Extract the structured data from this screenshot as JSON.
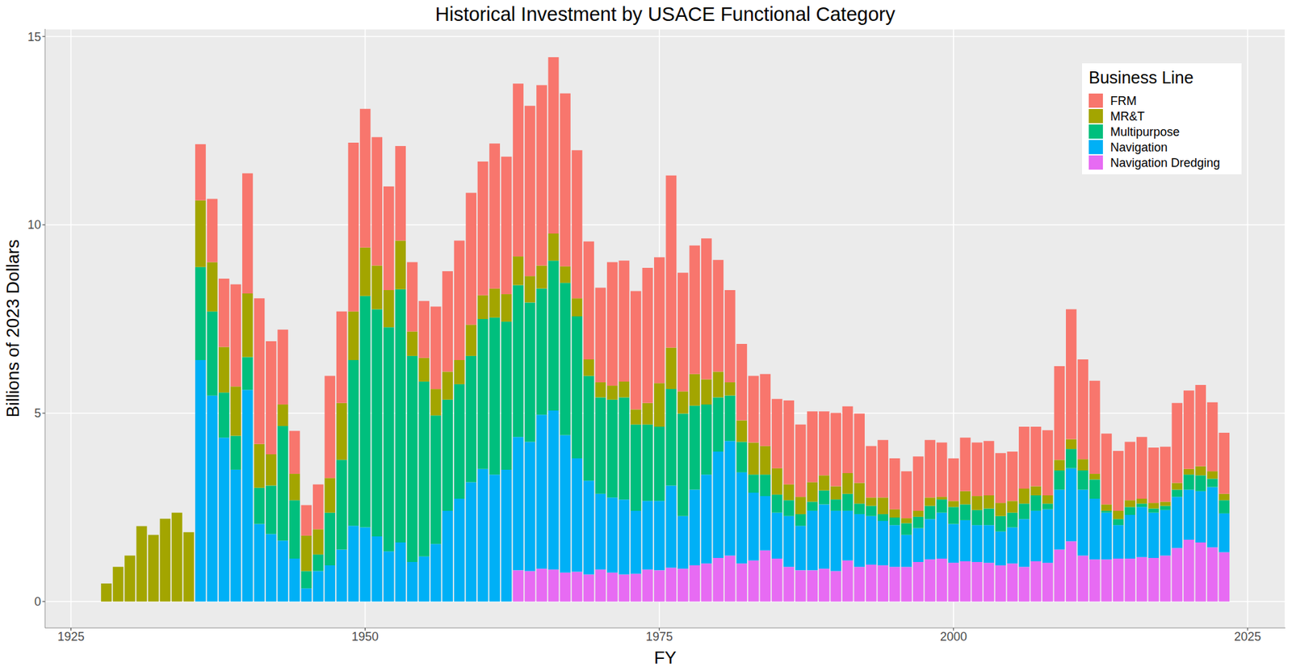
{
  "chart_data": {
    "type": "bar",
    "title": "Historical Investment by USACE Functional Category",
    "x_label": "FY",
    "y_label": "Billions of 2023 Dollars",
    "legend_title": "Business Line",
    "legend": "top-right",
    "stacked": true,
    "grid": true,
    "xlim": [
      1922.8,
      2028.2
    ],
    "xticks": [
      1925,
      1950,
      1975,
      2000,
      2025
    ],
    "ylim": [
      -0.7,
      15.2
    ],
    "yticks": [
      0,
      5,
      10,
      15
    ],
    "x": [
      1928,
      1929,
      1930,
      1931,
      1932,
      1933,
      1934,
      1935,
      1936,
      1937,
      1938,
      1939,
      1940,
      1941,
      1942,
      1943,
      1944,
      1945,
      1946,
      1947,
      1948,
      1949,
      1950,
      1951,
      1952,
      1953,
      1954,
      1955,
      1956,
      1957,
      1958,
      1959,
      1960,
      1961,
      1962,
      1963,
      1964,
      1965,
      1966,
      1967,
      1968,
      1969,
      1970,
      1971,
      1972,
      1973,
      1974,
      1975,
      1976,
      1977,
      1978,
      1979,
      1980,
      1981,
      1982,
      1983,
      1984,
      1985,
      1986,
      1987,
      1988,
      1989,
      1990,
      1991,
      1992,
      1993,
      1994,
      1995,
      1996,
      1997,
      1998,
      1999,
      2000,
      2001,
      2002,
      2003,
      2004,
      2005,
      2006,
      2007,
      2008,
      2009,
      2010,
      2011,
      2012,
      2013,
      2014,
      2015,
      2016,
      2017,
      2018,
      2019,
      2020,
      2021,
      2022,
      2023
    ],
    "series": [
      {
        "name": "FRM",
        "color": "#F8766D",
        "values": [
          null,
          null,
          null,
          null,
          null,
          null,
          null,
          null,
          1.49,
          1.68,
          1.81,
          2.71,
          3.19,
          3.87,
          3.0,
          1.99,
          1.14,
          0.81,
          1.19,
          2.71,
          2.43,
          4.48,
          3.68,
          3.41,
          2.75,
          2.51,
          1.84,
          1.51,
          2.19,
          2.67,
          3.17,
          3.5,
          3.55,
          3.85,
          3.65,
          4.59,
          4.52,
          4.79,
          4.68,
          4.59,
          3.93,
          3.13,
          2.51,
          3.28,
          3.21,
          3.14,
          3.59,
          3.34,
          4.57,
          3.15,
          3.41,
          3.74,
          2.97,
          2.45,
          2.03,
          1.77,
          1.91,
          1.84,
          2.23,
          1.92,
          1.88,
          1.7,
          1.95,
          1.77,
          1.84,
          1.37,
          1.53,
          1.35,
          1.25,
          1.44,
          1.53,
          1.44,
          1.13,
          1.42,
          1.42,
          1.44,
          1.32,
          1.31,
          1.64,
          1.58,
          1.73,
          2.49,
          3.45,
          2.65,
          2.47,
          1.88,
          1.59,
          1.55,
          1.64,
          1.47,
          1.46,
          2.12,
          2.08,
          2.16,
          1.83,
          1.62
        ]
      },
      {
        "name": "MR&T",
        "color": "#A3A500",
        "values": [
          0.48,
          0.92,
          1.22,
          2.0,
          1.77,
          2.2,
          2.36,
          1.84,
          1.77,
          1.31,
          1.21,
          1.31,
          1.69,
          1.16,
          0.83,
          0.57,
          0.7,
          0.94,
          0.67,
          0.92,
          1.51,
          1.29,
          1.29,
          1.16,
          0.99,
          1.29,
          0.65,
          0.63,
          0.7,
          0.74,
          0.64,
          0.83,
          0.63,
          0.77,
          0.73,
          0.76,
          0.7,
          0.61,
          0.72,
          0.44,
          0.48,
          0.44,
          0.4,
          0.37,
          0.42,
          0.4,
          0.57,
          1.16,
          1.1,
          0.59,
          0.84,
          0.67,
          0.68,
          0.35,
          0.57,
          0.85,
          0.76,
          0.7,
          0.42,
          0.46,
          0.52,
          0.4,
          0.35,
          0.55,
          0.55,
          0.22,
          0.44,
          0.22,
          0.13,
          0.16,
          0.22,
          0.07,
          0.16,
          0.35,
          0.37,
          0.35,
          0.35,
          0.31,
          0.4,
          0.24,
          0.22,
          0.28,
          0.26,
          0.3,
          0.15,
          0.17,
          0.22,
          0.18,
          0.13,
          0.15,
          0.11,
          0.18,
          0.15,
          0.24,
          0.2,
          0.17
        ]
      },
      {
        "name": "Multipurpose",
        "color": "#00BF7D",
        "values": [
          null,
          null,
          null,
          null,
          null,
          null,
          null,
          null,
          2.47,
          2.23,
          1.2,
          0.9,
          0.87,
          0.96,
          1.29,
          3.04,
          1.55,
          0.46,
          0.44,
          1.4,
          2.38,
          4.4,
          6.14,
          6.03,
          5.95,
          6.72,
          5.47,
          4.64,
          3.41,
          2.95,
          3.04,
          3.35,
          3.98,
          4.17,
          3.93,
          4.03,
          3.7,
          3.35,
          3.98,
          4.04,
          3.77,
          2.78,
          2.56,
          2.6,
          2.71,
          2.29,
          2.03,
          1.97,
          2.56,
          2.72,
          2.23,
          1.86,
          1.44,
          1.21,
          0.81,
          0.48,
          0.57,
          0.48,
          0.42,
          0.31,
          0.24,
          0.37,
          0.3,
          0.45,
          0.28,
          0.27,
          0.18,
          0.2,
          0.31,
          0.3,
          0.35,
          0.35,
          0.45,
          0.42,
          0.4,
          0.44,
          0.41,
          0.39,
          0.41,
          0.41,
          0.15,
          0.51,
          0.51,
          0.51,
          0.51,
          0.05,
          0.16,
          0.21,
          0.09,
          0.11,
          0.11,
          0.19,
          0.4,
          0.42,
          0.22,
          0.35
        ]
      },
      {
        "name": "Navigation",
        "color": "#00B0F6",
        "values": [
          null,
          null,
          null,
          null,
          null,
          null,
          null,
          null,
          6.41,
          5.47,
          4.35,
          3.5,
          5.62,
          2.06,
          1.79,
          1.62,
          1.14,
          0.35,
          0.81,
          0.96,
          1.38,
          2.01,
          1.97,
          1.73,
          1.33,
          1.57,
          1.05,
          1.2,
          1.53,
          2.41,
          2.73,
          3.17,
          3.52,
          3.37,
          3.5,
          3.54,
          3.43,
          4.09,
          4.22,
          3.65,
          3.01,
          2.49,
          2.01,
          1.99,
          1.99,
          1.67,
          1.82,
          1.84,
          2.18,
          1.4,
          2.01,
          2.36,
          2.82,
          3.04,
          2.42,
          1.8,
          1.44,
          1.22,
          1.35,
          1.18,
          1.58,
          1.71,
          1.6,
          1.32,
          1.4,
          1.29,
          1.18,
          1.11,
          0.85,
          0.9,
          1.07,
          1.22,
          1.03,
          1.09,
          0.98,
          1.0,
          0.9,
          0.96,
          1.27,
          1.34,
          1.42,
          1.59,
          1.94,
          1.75,
          1.61,
          1.24,
          0.89,
          1.16,
          1.33,
          1.2,
          1.21,
          1.36,
          1.33,
          1.36,
          1.6,
          1.03
        ]
      },
      {
        "name": "Navigation Dredging",
        "color": "#E76BF3",
        "values": [
          null,
          null,
          null,
          null,
          null,
          null,
          null,
          null,
          null,
          null,
          null,
          null,
          null,
          null,
          null,
          null,
          null,
          null,
          null,
          null,
          null,
          null,
          null,
          null,
          null,
          null,
          null,
          null,
          null,
          null,
          null,
          null,
          null,
          null,
          null,
          0.83,
          0.81,
          0.87,
          0.85,
          0.77,
          0.79,
          0.72,
          0.85,
          0.77,
          0.72,
          0.74,
          0.85,
          0.83,
          0.9,
          0.87,
          0.96,
          1.01,
          1.16,
          1.22,
          1.01,
          1.09,
          1.36,
          1.14,
          0.92,
          0.83,
          0.83,
          0.87,
          0.81,
          1.09,
          0.92,
          0.98,
          0.96,
          0.92,
          0.92,
          1.05,
          1.12,
          1.14,
          1.03,
          1.07,
          1.05,
          1.03,
          0.96,
          1.01,
          0.92,
          1.07,
          1.03,
          1.38,
          1.6,
          1.22,
          1.12,
          1.12,
          1.14,
          1.14,
          1.18,
          1.16,
          1.22,
          1.42,
          1.64,
          1.57,
          1.44,
          1.31
        ]
      }
    ]
  }
}
